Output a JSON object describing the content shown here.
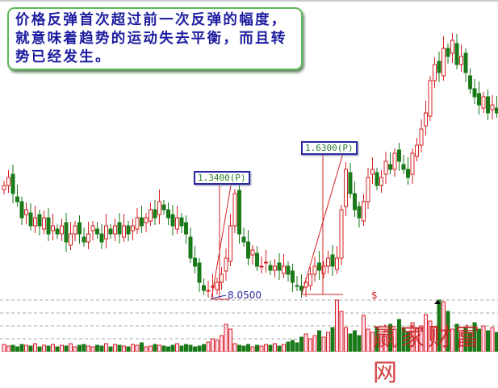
{
  "annotation_note": "价格反弹首次超过前一次反弹的幅度，就意味着趋势的运动失去平衡，而且转势已经发生。",
  "watermark": "赢家财富网",
  "colors": {
    "up": "#d42020",
    "down": "#1a7a1a",
    "label_border": "#2a2aa0",
    "note_border": "#5cb85c",
    "note_text": "#1c1ca0"
  },
  "chart_data": {
    "type": "candlestick",
    "price_close": [
      15,
      16,
      14,
      13,
      11,
      12,
      10,
      11,
      10,
      11,
      9,
      10,
      9,
      10,
      8,
      9,
      10,
      9,
      8,
      9,
      10,
      9,
      8,
      10,
      9,
      10,
      9,
      10,
      9,
      10,
      11,
      10,
      11,
      12,
      11,
      13,
      12,
      11,
      10,
      11,
      10,
      9,
      6,
      5,
      3,
      2,
      2,
      2.5,
      3,
      4,
      6,
      10,
      14,
      9,
      8,
      6,
      7,
      5,
      5,
      5.5,
      4.5,
      5,
      4.5,
      5,
      4,
      3,
      2.5,
      2,
      3,
      4,
      5,
      4.5,
      5,
      6,
      5,
      6,
      12,
      17,
      14,
      12,
      11,
      13,
      16,
      17,
      15,
      16,
      18,
      17,
      19,
      18,
      17,
      16,
      19,
      20,
      22,
      24,
      28,
      30,
      29,
      32,
      31,
      33,
      30,
      31,
      29,
      27,
      26,
      25,
      26,
      24,
      25,
      24
    ],
    "volume": [
      9,
      7,
      8,
      6,
      9,
      8,
      7,
      10,
      6,
      8,
      7,
      9,
      6,
      8,
      7,
      10,
      6,
      8,
      9,
      7,
      6,
      8,
      7,
      10,
      6,
      9,
      8,
      7,
      6,
      9,
      8,
      11,
      6,
      7,
      9,
      8,
      7,
      6,
      8,
      10,
      7,
      9,
      8,
      6,
      7,
      9,
      12,
      16,
      14,
      20,
      34,
      28,
      10,
      8,
      7,
      9,
      6,
      8,
      7,
      9,
      8,
      10,
      7,
      9,
      12,
      14,
      11,
      18,
      22,
      16,
      20,
      26,
      18,
      24,
      30,
      64,
      50,
      30,
      22,
      26,
      20,
      45,
      28,
      24,
      30,
      22,
      26,
      34,
      28,
      40,
      30,
      24,
      36,
      28,
      32,
      46,
      38,
      30,
      64,
      62,
      50,
      28,
      34,
      26,
      30,
      24,
      36,
      28,
      32,
      26,
      30,
      24
    ],
    "annotations": [
      {
        "label": "1.3400(P)",
        "kind": "rebound-range"
      },
      {
        "label": "1.6300(P)",
        "kind": "rebound-range"
      },
      {
        "label": "8.0500",
        "kind": "low-mark"
      },
      {
        "label": "$",
        "kind": "marker"
      }
    ]
  }
}
